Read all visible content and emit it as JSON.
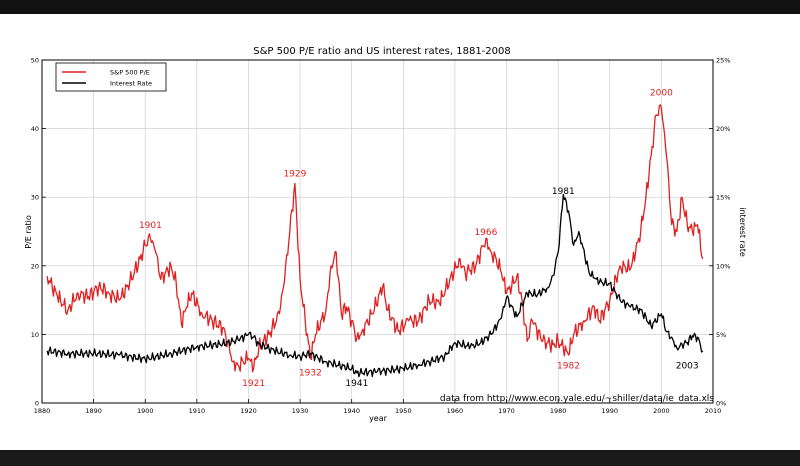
{
  "chart_data": {
    "type": "line",
    "title": "S&P 500 P/E ratio and US interest rates, 1881-2008",
    "xlabel": "year",
    "ylabel_left": "P/E ratio",
    "ylabel_right": "interest rate",
    "xlim": [
      1880,
      2010
    ],
    "ylim_left": [
      0,
      50
    ],
    "ylim_right": [
      0,
      25
    ],
    "x_ticks": [
      "1880",
      "1890",
      "1900",
      "1910",
      "1920",
      "1930",
      "1940",
      "1950",
      "1960",
      "1970",
      "1980",
      "1990",
      "2000",
      "2010"
    ],
    "y_ticks_left": [
      "0",
      "10",
      "20",
      "30",
      "40",
      "50"
    ],
    "y_ticks_right": [
      "0%",
      "5%",
      "10%",
      "15%",
      "20%",
      "25%"
    ],
    "grid": true,
    "legend_placement": "top-left",
    "source_note": "data from http://www.econ.yale.edu/~shiller/data/ie_data.xls",
    "series": [
      {
        "name": "S&P 500 P/E",
        "axis": "left",
        "color": "#e02020",
        "x": [
          1881,
          1883,
          1885,
          1887,
          1889,
          1891,
          1893,
          1895,
          1897,
          1899,
          1900,
          1901,
          1902,
          1903,
          1905,
          1906,
          1907,
          1908,
          1909,
          1911,
          1913,
          1915,
          1916,
          1917,
          1918,
          1919,
          1920,
          1921,
          1922,
          1924,
          1926,
          1927,
          1928,
          1929,
          1930,
          1931,
          1932,
          1933,
          1935,
          1936,
          1937,
          1938,
          1939,
          1940,
          1941,
          1942,
          1944,
          1946,
          1947,
          1949,
          1951,
          1953,
          1955,
          1957,
          1959,
          1961,
          1962,
          1964,
          1966,
          1967,
          1968,
          1969,
          1970,
          1971,
          1972,
          1973,
          1974,
          1975,
          1977,
          1979,
          1980,
          1981,
          1982,
          1983,
          1985,
          1987,
          1988,
          1990,
          1992,
          1994,
          1995,
          1996,
          1997,
          1998,
          1999,
          2000,
          2001,
          2002,
          2003,
          2004,
          2005,
          2006,
          2007,
          2008
        ],
        "values": [
          18.5,
          15.5,
          13.5,
          16,
          15.5,
          17,
          16,
          15,
          17.5,
          21,
          23,
          24,
          22,
          18,
          20,
          17.5,
          11.5,
          14,
          16,
          13,
          12,
          11,
          9,
          6,
          5.5,
          6,
          6.5,
          5,
          8,
          10,
          13,
          18,
          25,
          32,
          18,
          12,
          6.5,
          10,
          13.5,
          20,
          22,
          13,
          14,
          12,
          9.5,
          10.5,
          13,
          17,
          13.5,
          10.5,
          12,
          12,
          15,
          14.5,
          18,
          21,
          19,
          20,
          24,
          22,
          21,
          19,
          16,
          17,
          18.5,
          15,
          9,
          12,
          9,
          8.5,
          9,
          8,
          7,
          10,
          12,
          14,
          12,
          15,
          20,
          19.5,
          22,
          25,
          30,
          36,
          42,
          43,
          36,
          26,
          25,
          30,
          26,
          25,
          26,
          21
        ]
      },
      {
        "name": "Interest Rate",
        "axis": "right",
        "color": "#000000",
        "x": [
          1881,
          1885,
          1890,
          1895,
          1900,
          1905,
          1910,
          1915,
          1918,
          1920,
          1921,
          1922,
          1925,
          1928,
          1930,
          1932,
          1935,
          1940,
          1941,
          1945,
          1950,
          1953,
          1955,
          1958,
          1960,
          1963,
          1965,
          1967,
          1969,
          1970,
          1972,
          1974,
          1976,
          1978,
          1979,
          1980,
          1981,
          1982,
          1983,
          1984,
          1986,
          1987,
          1988,
          1990,
          1992,
          1994,
          1996,
          1998,
          2000,
          2001,
          2002,
          2003,
          2004,
          2005,
          2006,
          2007,
          2008
        ],
        "values": [
          3.8,
          3.6,
          3.6,
          3.5,
          3.2,
          3.6,
          4.1,
          4.3,
          4.6,
          5.0,
          4.8,
          4.3,
          3.8,
          3.5,
          3.4,
          3.6,
          3.0,
          2.5,
          2.2,
          2.3,
          2.5,
          2.8,
          3.0,
          3.4,
          4.4,
          4.1,
          4.4,
          5.0,
          6.2,
          7.7,
          6.3,
          8.0,
          7.9,
          8.4,
          9.3,
          11.0,
          15.2,
          14.0,
          11.5,
          12.5,
          9.5,
          9.1,
          8.8,
          8.7,
          7.5,
          7.0,
          6.8,
          5.6,
          6.5,
          5.2,
          4.8,
          4.0,
          4.3,
          4.4,
          4.9,
          4.8,
          3.8
        ]
      }
    ],
    "annotations": [
      {
        "text": "1901",
        "x": 1901,
        "y": 25.5,
        "axis": "left",
        "color": "#e02020",
        "anchor": "middle"
      },
      {
        "text": "1929",
        "x": 1929,
        "y": 33,
        "axis": "left",
        "color": "#e02020",
        "anchor": "middle"
      },
      {
        "text": "1921",
        "x": 1921,
        "y": 2.5,
        "axis": "left",
        "color": "#e02020",
        "anchor": "middle"
      },
      {
        "text": "1932",
        "x": 1932,
        "y": 4,
        "axis": "left",
        "color": "#e02020",
        "anchor": "middle"
      },
      {
        "text": "1941",
        "x": 1941,
        "y": 2.5,
        "axis": "left",
        "color": "#000000",
        "anchor": "middle"
      },
      {
        "text": "1966",
        "x": 1966,
        "y": 24.5,
        "axis": "left",
        "color": "#e02020",
        "anchor": "middle"
      },
      {
        "text": "1981",
        "x": 1981,
        "y": 30.5,
        "axis": "left",
        "color": "#000000",
        "anchor": "middle"
      },
      {
        "text": "1982",
        "x": 1982,
        "y": 5,
        "axis": "left",
        "color": "#e02020",
        "anchor": "middle"
      },
      {
        "text": "2000",
        "x": 2000,
        "y": 44.8,
        "axis": "left",
        "color": "#e02020",
        "anchor": "middle"
      },
      {
        "text": "2003",
        "x": 2005,
        "y": 5,
        "axis": "left",
        "color": "#000000",
        "anchor": "middle"
      }
    ]
  }
}
